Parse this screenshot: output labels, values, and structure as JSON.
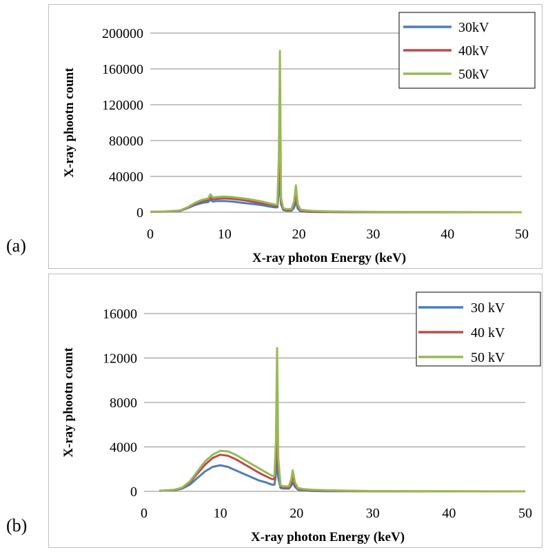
{
  "panels": {
    "a": {
      "label": "(a)"
    },
    "b": {
      "label": "(b)"
    }
  },
  "chart_data": [
    {
      "type": "line",
      "title": "",
      "xlabel": "X-ray photon Energy (keV)",
      "ylabel": "X-ray phootn count",
      "xlim": [
        0,
        50
      ],
      "ylim": [
        0,
        200000
      ],
      "x_ticks": [
        0,
        10,
        20,
        30,
        40,
        50
      ],
      "y_ticks": [
        0,
        40000,
        80000,
        120000,
        160000,
        200000
      ],
      "grid": "horizontal",
      "legend_position": "top-right",
      "series": [
        {
          "name": "30kV",
          "color": "#4a7ebb",
          "x": [
            0,
            2,
            4,
            5,
            6,
            7,
            7.8,
            8.1,
            8.4,
            9,
            10,
            11,
            12,
            13,
            14,
            15,
            16,
            16.8,
            17.1,
            17.3,
            17.45,
            17.6,
            17.9,
            18.3,
            19,
            19.35,
            19.6,
            19.85,
            20.2,
            21,
            22,
            24,
            27,
            30,
            35,
            40,
            45,
            50
          ],
          "y": [
            500,
            700,
            1500,
            4500,
            8000,
            10500,
            11500,
            14000,
            12000,
            12500,
            12500,
            12000,
            11000,
            10000,
            9000,
            8000,
            6500,
            5500,
            5500,
            20000,
            50000,
            9000,
            2500,
            1800,
            1800,
            5000,
            12000,
            4000,
            1200,
            600,
            300,
            150,
            80,
            40,
            20,
            10,
            5,
            0
          ]
        },
        {
          "name": "40kV",
          "color": "#be4b48",
          "x": [
            0,
            2,
            4,
            5,
            6,
            7,
            7.8,
            8.1,
            8.4,
            9,
            10,
            11,
            12,
            13,
            14,
            15,
            16,
            16.8,
            17.1,
            17.3,
            17.45,
            17.6,
            17.9,
            18.3,
            19,
            19.35,
            19.6,
            19.85,
            20.2,
            21,
            22,
            24,
            27,
            30,
            35,
            40,
            45,
            50
          ],
          "y": [
            500,
            800,
            1800,
            5000,
            9500,
            12500,
            13500,
            17000,
            14500,
            15000,
            15500,
            15000,
            14000,
            13000,
            11500,
            10000,
            8500,
            7000,
            7000,
            40000,
            120000,
            12000,
            3500,
            2500,
            2500,
            9000,
            22000,
            7000,
            2000,
            1000,
            600,
            400,
            250,
            150,
            80,
            40,
            20,
            0
          ]
        },
        {
          "name": "50kV",
          "color": "#98b954",
          "x": [
            0,
            2,
            4,
            5,
            6,
            7,
            7.8,
            8.1,
            8.4,
            9,
            10,
            11,
            12,
            13,
            14,
            15,
            16,
            16.8,
            17.1,
            17.3,
            17.45,
            17.6,
            17.9,
            18.3,
            19,
            19.35,
            19.6,
            19.85,
            20.2,
            21,
            22,
            24,
            27,
            30,
            35,
            40,
            45,
            50
          ],
          "y": [
            500,
            900,
            2000,
            5500,
            10500,
            14000,
            15500,
            20000,
            16500,
            17000,
            17500,
            17000,
            16000,
            15000,
            13500,
            12000,
            10000,
            8500,
            8500,
            60000,
            180000,
            16000,
            4500,
            3500,
            3500,
            12000,
            30000,
            9000,
            3000,
            2000,
            1500,
            1000,
            700,
            500,
            300,
            200,
            100,
            0
          ]
        }
      ]
    },
    {
      "type": "line",
      "title": "",
      "xlabel": "X-ray photon Energy (keV)",
      "ylabel": "X-ray phootn count",
      "xlim": [
        0,
        50
      ],
      "ylim": [
        0,
        16000
      ],
      "x_ticks": [
        0,
        10,
        20,
        30,
        40,
        50
      ],
      "y_ticks": [
        0,
        4000,
        8000,
        12000,
        16000
      ],
      "grid": "horizontal",
      "legend_position": "top-right",
      "series": [
        {
          "name": "30 kV",
          "color": "#4a7ebb",
          "x": [
            2,
            4,
            5,
            6,
            7,
            8,
            9,
            10,
            11,
            12,
            13,
            14,
            15,
            16,
            16.8,
            17.1,
            17.3,
            17.45,
            17.6,
            17.9,
            18.3,
            19,
            19.3,
            19.5,
            19.8,
            20.2,
            21,
            22,
            24,
            27,
            30,
            35,
            40,
            45,
            50
          ],
          "y": [
            50,
            100,
            250,
            600,
            1200,
            1800,
            2200,
            2350,
            2200,
            1900,
            1600,
            1300,
            1000,
            800,
            600,
            600,
            1500,
            3500,
            1200,
            300,
            250,
            250,
            500,
            800,
            400,
            150,
            80,
            40,
            20,
            10,
            5,
            0,
            0,
            0,
            0
          ]
        },
        {
          "name": "40 kV",
          "color": "#be4b48",
          "x": [
            2,
            4,
            5,
            6,
            7,
            8,
            9,
            10,
            11,
            12,
            13,
            14,
            15,
            16,
            16.8,
            17.1,
            17.3,
            17.45,
            17.6,
            17.9,
            18.3,
            19,
            19.3,
            19.5,
            19.8,
            20.2,
            21,
            22,
            24,
            27,
            30,
            35,
            40,
            45,
            50
          ],
          "y": [
            50,
            120,
            300,
            800,
            1600,
            2400,
            3000,
            3300,
            3200,
            2900,
            2500,
            2100,
            1700,
            1350,
            1100,
            1100,
            3000,
            7500,
            2200,
            450,
            350,
            350,
            800,
            1400,
            600,
            250,
            150,
            100,
            60,
            30,
            15,
            8,
            4,
            2,
            0
          ]
        },
        {
          "name": "50 kV",
          "color": "#98b954",
          "x": [
            2,
            4,
            5,
            6,
            7,
            8,
            9,
            10,
            11,
            12,
            13,
            14,
            15,
            16,
            16.8,
            17.1,
            17.3,
            17.45,
            17.6,
            17.9,
            18.3,
            19,
            19.3,
            19.5,
            19.8,
            20.2,
            21,
            22,
            24,
            27,
            30,
            35,
            40,
            45,
            50
          ],
          "y": [
            50,
            150,
            350,
            900,
            1800,
            2700,
            3300,
            3650,
            3600,
            3300,
            2900,
            2500,
            2100,
            1700,
            1400,
            1400,
            4500,
            12900,
            3000,
            550,
            450,
            450,
            1100,
            1900,
            800,
            300,
            200,
            150,
            100,
            60,
            30,
            15,
            8,
            4,
            0
          ]
        }
      ]
    }
  ]
}
